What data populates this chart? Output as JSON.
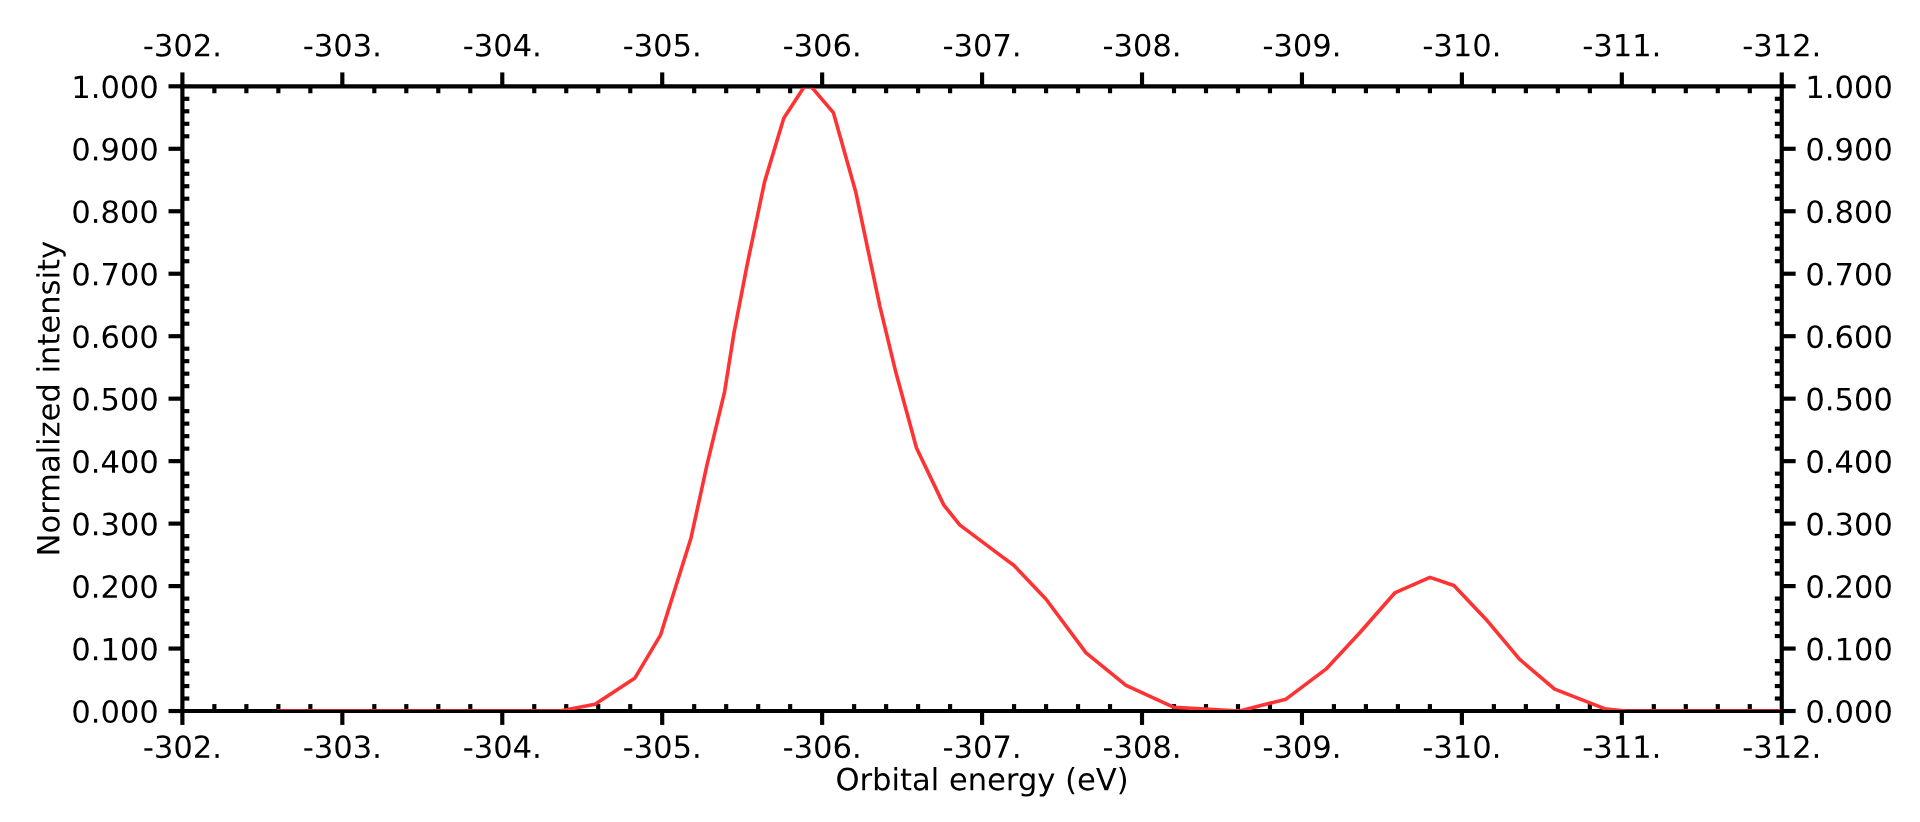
{
  "chart_data": {
    "type": "line",
    "xlabel": "Orbital energy (eV)",
    "ylabel": "Normalized intensity",
    "xlim": [
      -302,
      -312
    ],
    "ylim": [
      0,
      1
    ],
    "xticks": [
      {
        "value": -302,
        "label": "-302."
      },
      {
        "value": -303,
        "label": "-303."
      },
      {
        "value": -304,
        "label": "-304."
      },
      {
        "value": -305,
        "label": "-305."
      },
      {
        "value": -306,
        "label": "-306."
      },
      {
        "value": -307,
        "label": "-307."
      },
      {
        "value": -308,
        "label": "-308."
      },
      {
        "value": -309,
        "label": "-309."
      },
      {
        "value": -310,
        "label": "-310."
      },
      {
        "value": -311,
        "label": "-311."
      },
      {
        "value": -312,
        "label": "-312."
      }
    ],
    "x2lim": [
      -302,
      -312
    ],
    "x2ticks": [
      {
        "value": -302,
        "label": "-302."
      },
      {
        "value": -303,
        "label": "-303."
      },
      {
        "value": -304,
        "label": "-304."
      },
      {
        "value": -305,
        "label": "-305."
      },
      {
        "value": -306,
        "label": "-306."
      },
      {
        "value": -307,
        "label": "-307."
      },
      {
        "value": -308,
        "label": "-308."
      },
      {
        "value": -309,
        "label": "-309."
      },
      {
        "value": -310,
        "label": "-310."
      },
      {
        "value": -311,
        "label": "-311."
      },
      {
        "value": -312,
        "label": "-312."
      }
    ],
    "yticks": [
      {
        "value": 0,
        "label": "0.000"
      },
      {
        "value": 0.1,
        "label": "0.100"
      },
      {
        "value": 0.2,
        "label": "0.200"
      },
      {
        "value": 0.3,
        "label": "0.300"
      },
      {
        "value": 0.4,
        "label": "0.400"
      },
      {
        "value": 0.5,
        "label": "0.500"
      },
      {
        "value": 0.6,
        "label": "0.600"
      },
      {
        "value": 0.7,
        "label": "0.700"
      },
      {
        "value": 0.8,
        "label": "0.800"
      },
      {
        "value": 0.9,
        "label": "0.900"
      },
      {
        "value": 1,
        "label": "1.000"
      }
    ],
    "y2lim": [
      0,
      1
    ],
    "y2ticks": [
      {
        "value": 0,
        "label": "0.000"
      },
      {
        "value": 0.1,
        "label": "0.100"
      },
      {
        "value": 0.2,
        "label": "0.200"
      },
      {
        "value": 0.3,
        "label": "0.300"
      },
      {
        "value": 0.4,
        "label": "0.400"
      },
      {
        "value": 0.5,
        "label": "0.500"
      },
      {
        "value": 0.6,
        "label": "0.600"
      },
      {
        "value": 0.7,
        "label": "0.700"
      },
      {
        "value": 0.8,
        "label": "0.800"
      },
      {
        "value": 0.9,
        "label": "0.900"
      },
      {
        "value": 1,
        "label": "1.000"
      }
    ],
    "grid": false,
    "marker": "none",
    "line_style": "solid",
    "series": [
      {
        "color": "#ff3333",
        "x": [
          -302.6,
          -304.36,
          -304.58,
          -304.83,
          -304.99,
          -305.18,
          -305.28,
          -305.39,
          -305.45,
          -305.53,
          -305.64,
          -305.76,
          -305.89,
          -305.93,
          -306.07,
          -306.21,
          -306.36,
          -306.46,
          -306.59,
          -306.76,
          -306.86,
          -307.11,
          -307.2,
          -307.4,
          -307.65,
          -307.9,
          -308.2,
          -308.61,
          -308.9,
          -309.15,
          -309.36,
          -309.58,
          -309.8,
          -309.95,
          -310.15,
          -310.36,
          -310.58,
          -310.9,
          -311.03,
          -311.99
        ],
        "values": [
          0,
          0,
          0.011,
          0.053,
          0.122,
          0.277,
          0.394,
          0.511,
          0.607,
          0.713,
          0.847,
          0.949,
          1.0,
          1.0,
          0.958,
          0.831,
          0.649,
          0.543,
          0.421,
          0.33,
          0.298,
          0.25,
          0.233,
          0.179,
          0.093,
          0.041,
          0.006,
          0,
          0.019,
          0.067,
          0.125,
          0.189,
          0.214,
          0.201,
          0.147,
          0.083,
          0.035,
          0.003,
          0,
          0
        ]
      }
    ]
  }
}
